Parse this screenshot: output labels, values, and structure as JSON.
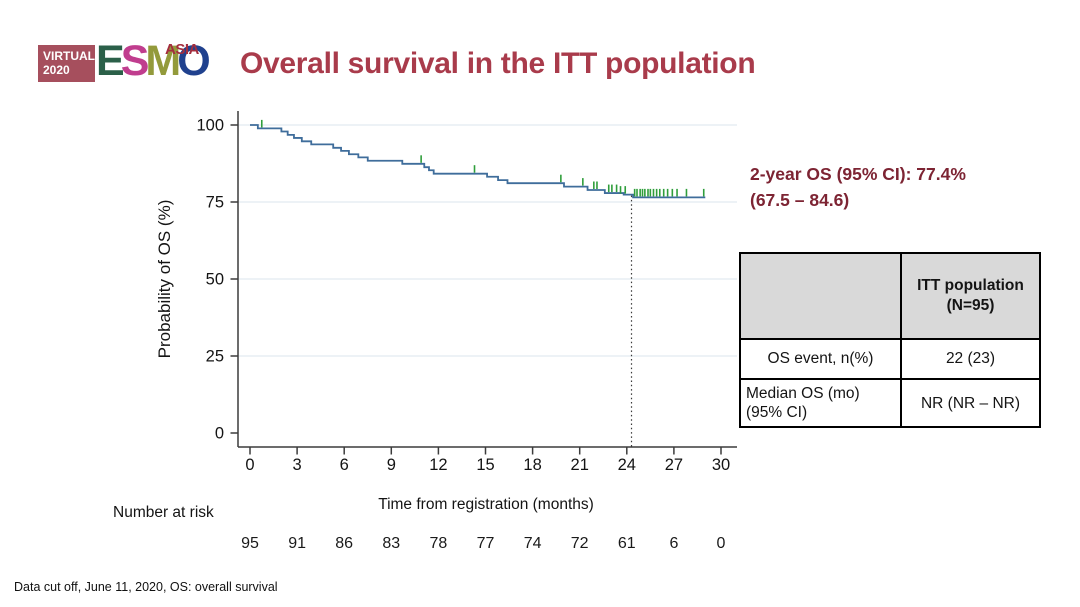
{
  "slide": {
    "title": "Overall survival in the ITT population",
    "title_color": "#a93b4b",
    "footer": "Data cut off, June 11, 2020, OS: overall survival"
  },
  "logo": {
    "virtual_line1": "VIRTUAL",
    "virtual_line2": "2020",
    "box_color": "#a64f5d",
    "letters": [
      {
        "ch": "E",
        "color": "#2b6049"
      },
      {
        "ch": "S",
        "color": "#c03d8e"
      },
      {
        "ch": "M",
        "color": "#939a3b"
      },
      {
        "ch": "O",
        "color": "#20418e"
      }
    ],
    "asia": "ASIA",
    "asia_color": "#a42e3e"
  },
  "annotation": {
    "line1": "2-year OS (95% CI): 77.4%",
    "line2": "(67.5 – 84.6)",
    "color": "#7d2433"
  },
  "table": {
    "header_bg": "#d9d9d9",
    "header": {
      "col1": "",
      "col2": "ITT population (N=95)"
    },
    "rows": [
      {
        "label": "OS event, n(%)",
        "value": "22 (23)"
      },
      {
        "label": "Median OS (mo) (95% CI)",
        "value": "NR (NR – NR)"
      }
    ]
  },
  "chart_data": {
    "type": "line",
    "subtype": "kaplan-meier-step",
    "title": "",
    "xlabel": "Time from registration (months)",
    "ylabel": "Probability of OS (%)",
    "xlim": [
      0,
      30
    ],
    "ylim": [
      0,
      100
    ],
    "x_ticks": [
      0,
      3,
      6,
      9,
      12,
      15,
      18,
      21,
      24,
      27,
      30
    ],
    "y_ticks": [
      0,
      25,
      50,
      75,
      100
    ],
    "grid": "horizontal",
    "grid_color": "#e2ebf0",
    "curve_color": "#3f6d9b",
    "censor_color": "#2f9e3b",
    "axis_color": "#3c3c3c",
    "start": [
      0,
      100
    ],
    "steps": [
      [
        0.5,
        98.9
      ],
      [
        2.0,
        97.9
      ],
      [
        2.4,
        96.8
      ],
      [
        2.8,
        95.8
      ],
      [
        3.3,
        94.7
      ],
      [
        3.9,
        93.7
      ],
      [
        5.3,
        92.6
      ],
      [
        5.8,
        91.6
      ],
      [
        6.3,
        90.5
      ],
      [
        6.9,
        89.5
      ],
      [
        7.5,
        88.4
      ],
      [
        9.7,
        87.4
      ],
      [
        11.1,
        86.3
      ],
      [
        11.4,
        85.3
      ],
      [
        11.7,
        84.2
      ],
      [
        15.1,
        83.2
      ],
      [
        15.8,
        82.1
      ],
      [
        16.4,
        81.1
      ],
      [
        20.0,
        80.0
      ],
      [
        21.5,
        78.9
      ],
      [
        22.6,
        77.9
      ],
      [
        23.8,
        77.4
      ],
      [
        24.4,
        76.5
      ]
    ],
    "end_month": 29.0,
    "censor_marks": [
      [
        0.75,
        98.9
      ],
      [
        10.9,
        87.4
      ],
      [
        14.3,
        84.2
      ],
      [
        19.8,
        81.1
      ],
      [
        21.2,
        80.0
      ],
      [
        21.9,
        78.9
      ],
      [
        22.1,
        78.9
      ],
      [
        22.85,
        77.9
      ],
      [
        23.05,
        77.9
      ],
      [
        23.35,
        77.9
      ],
      [
        23.6,
        77.4
      ],
      [
        23.9,
        77.4
      ],
      [
        24.5,
        76.5
      ],
      [
        24.65,
        76.5
      ],
      [
        24.85,
        76.5
      ],
      [
        25.0,
        76.5
      ],
      [
        25.15,
        76.5
      ],
      [
        25.35,
        76.5
      ],
      [
        25.5,
        76.5
      ],
      [
        25.7,
        76.5
      ],
      [
        25.9,
        76.5
      ],
      [
        26.1,
        76.5
      ],
      [
        26.35,
        76.5
      ],
      [
        26.6,
        76.5
      ],
      [
        26.9,
        76.5
      ],
      [
        27.2,
        76.5
      ],
      [
        27.8,
        76.5
      ],
      [
        28.9,
        76.5
      ]
    ],
    "dotted_line_month": 24.3,
    "two_year_os_pct": 77.4,
    "number_at_risk": {
      "label": "Number at risk",
      "months": [
        0,
        3,
        6,
        9,
        12,
        15,
        18,
        21,
        24,
        27,
        30
      ],
      "values": [
        95,
        91,
        86,
        83,
        78,
        77,
        74,
        72,
        61,
        6,
        0
      ]
    }
  }
}
